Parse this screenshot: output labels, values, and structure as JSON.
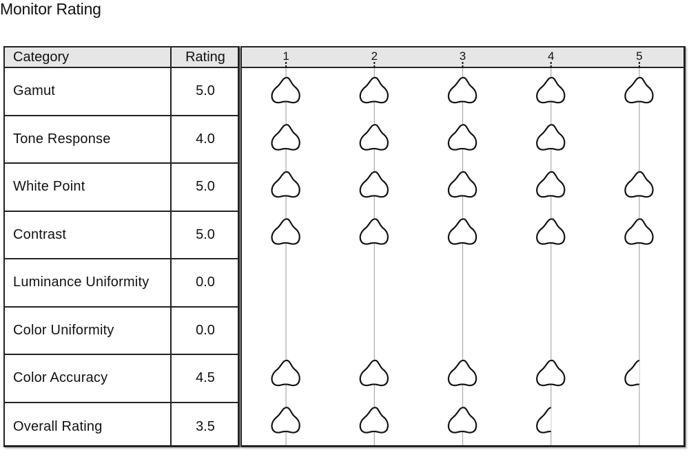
{
  "page": {
    "title": "Monitor Rating"
  },
  "table": {
    "headers": {
      "category": "Category",
      "rating": "Rating"
    },
    "rows": [
      {
        "category": "Gamut",
        "rating": "5.0"
      },
      {
        "category": "Tone Response",
        "rating": "4.0"
      },
      {
        "category": "White Point",
        "rating": "5.0"
      },
      {
        "category": "Contrast",
        "rating": "5.0"
      },
      {
        "category": "Luminance Uniformity",
        "rating": "0.0"
      },
      {
        "category": "Color Uniformity",
        "rating": "0.0"
      },
      {
        "category": "Color Accuracy",
        "rating": "4.5"
      },
      {
        "category": "Overall Rating",
        "rating": "3.5"
      }
    ]
  },
  "chart_data": {
    "type": "table",
    "mark_icon": "knob-icon",
    "x_ticks": [
      "1",
      "2",
      "3",
      "4",
      "5"
    ],
    "xlim": [
      0.5,
      5.5
    ],
    "grid": "vertical",
    "categories": [
      "Gamut",
      "Tone Response",
      "White Point",
      "Contrast",
      "Luminance Uniformity",
      "Color Uniformity",
      "Color Accuracy",
      "Overall Rating"
    ],
    "values": [
      5.0,
      4.0,
      5.0,
      5.0,
      0.0,
      0.0,
      4.5,
      3.5
    ],
    "colors": {
      "header_bg": "#e6e6e6",
      "line": "#aaaaaa",
      "border": "#222222",
      "icon_stroke": "#111111"
    }
  }
}
